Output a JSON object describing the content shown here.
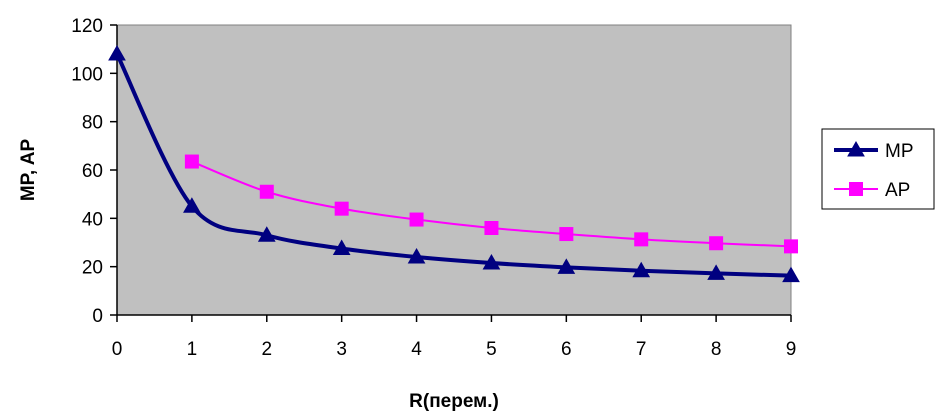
{
  "chart_data": {
    "type": "line",
    "title": "",
    "xlabel": "R(перем.)",
    "ylabel": "MP, AP",
    "x": [
      0,
      1,
      2,
      3,
      4,
      5,
      6,
      7,
      8,
      9
    ],
    "xlim": [
      0,
      9
    ],
    "ylim": [
      0,
      120
    ],
    "yticks": [
      0,
      20,
      40,
      60,
      80,
      100,
      120
    ],
    "grid": false,
    "plot_background": "#c0c0c0",
    "legend_position": "right",
    "series": [
      {
        "name": "MP",
        "color": "#000080",
        "marker": "triangle",
        "values": [
          108,
          45,
          33,
          27.5,
          24,
          21.5,
          19.7,
          18.3,
          17.2,
          16.3
        ]
      },
      {
        "name": "AP",
        "color": "#ff00ff",
        "marker": "square",
        "values": [
          null,
          63.5,
          51,
          44,
          39.5,
          36,
          33.5,
          31.3,
          29.7,
          28.4
        ]
      }
    ]
  }
}
